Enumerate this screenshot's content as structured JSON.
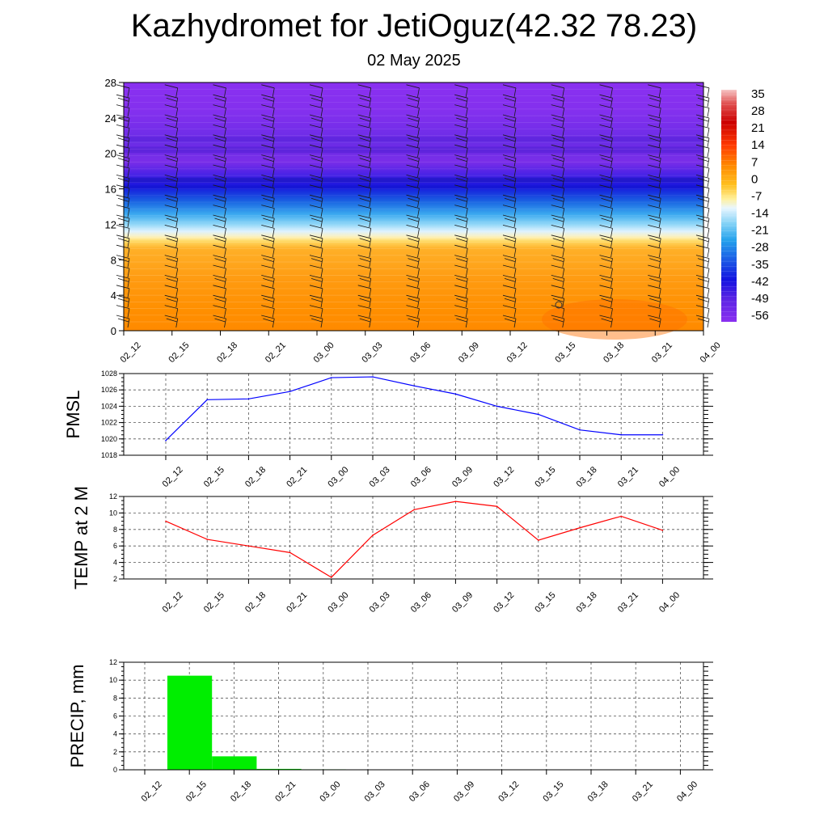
{
  "title": "Kazhydromet for JetiOguz(42.32 78.23)",
  "subtitle": "02 May 2025",
  "x_labels": [
    "02_12",
    "02_15",
    "02_18",
    "02_21",
    "03_00",
    "03_03",
    "03_06",
    "03_09",
    "03_12",
    "03_15",
    "03_18",
    "03_21",
    "04_00"
  ],
  "colorbar": {
    "labels": [
      "35",
      "28",
      "21",
      "14",
      "7",
      "0",
      "-7",
      "-14",
      "-21",
      "-28",
      "-35",
      "-42",
      "-49",
      "-56"
    ],
    "colors": [
      "#f2b6b6",
      "#d50000",
      "#ff4a00",
      "#ff9000",
      "#ffc82a",
      "#fff49a",
      "#b9e2ff",
      "#37b6ef",
      "#1c64e6",
      "#1010e0",
      "#8a2be2"
    ]
  },
  "chart_data": [
    {
      "type": "heatmap",
      "name": "cross-section",
      "xlabel": "",
      "ylabel": "",
      "yticks": [
        0,
        4,
        8,
        12,
        16,
        20,
        24,
        28
      ],
      "ylim": [
        0,
        28
      ],
      "variable": "temperature",
      "color_range": [
        -56,
        35
      ],
      "approx_levels": [
        {
          "y": 0,
          "value": 20
        },
        {
          "y": 6,
          "value": 12
        },
        {
          "y": 10.5,
          "value": 2
        },
        {
          "y": 12,
          "value": -14
        },
        {
          "y": 14,
          "value": -30
        },
        {
          "y": 17,
          "value": -50
        },
        {
          "y": 20,
          "value": -58
        },
        {
          "y": 28,
          "value": -60
        }
      ],
      "wind_barbs": true
    },
    {
      "type": "line",
      "ylabel": "PMSL",
      "ylim": [
        1018,
        1028
      ],
      "yticks": [
        1018,
        1020,
        1022,
        1024,
        1026,
        1028
      ],
      "color": "#0000ff",
      "values": [
        1019.8,
        1024.8,
        1024.9,
        1025.8,
        1027.5,
        1027.6,
        1026.5,
        1025.5,
        1024.0,
        1023.0,
        1021.1,
        1020.5,
        1020.5
      ]
    },
    {
      "type": "line",
      "ylabel": "TEMP at 2 M",
      "ylim": [
        2,
        12
      ],
      "yticks": [
        2,
        4,
        6,
        8,
        10,
        12
      ],
      "color": "#ff0000",
      "values": [
        9.0,
        6.8,
        6.0,
        5.2,
        2.2,
        7.3,
        10.4,
        11.4,
        10.8,
        6.7,
        8.2,
        9.6,
        7.9
      ]
    },
    {
      "type": "bar",
      "ylabel": "PRECIP, mm",
      "ylim": [
        0,
        12
      ],
      "yticks": [
        0,
        2,
        4,
        6,
        8,
        10,
        12
      ],
      "color": "#00ee00",
      "values": [
        10.5,
        1.5,
        0.1,
        0.05,
        0,
        0,
        0,
        0,
        0,
        0,
        0,
        0
      ]
    }
  ]
}
